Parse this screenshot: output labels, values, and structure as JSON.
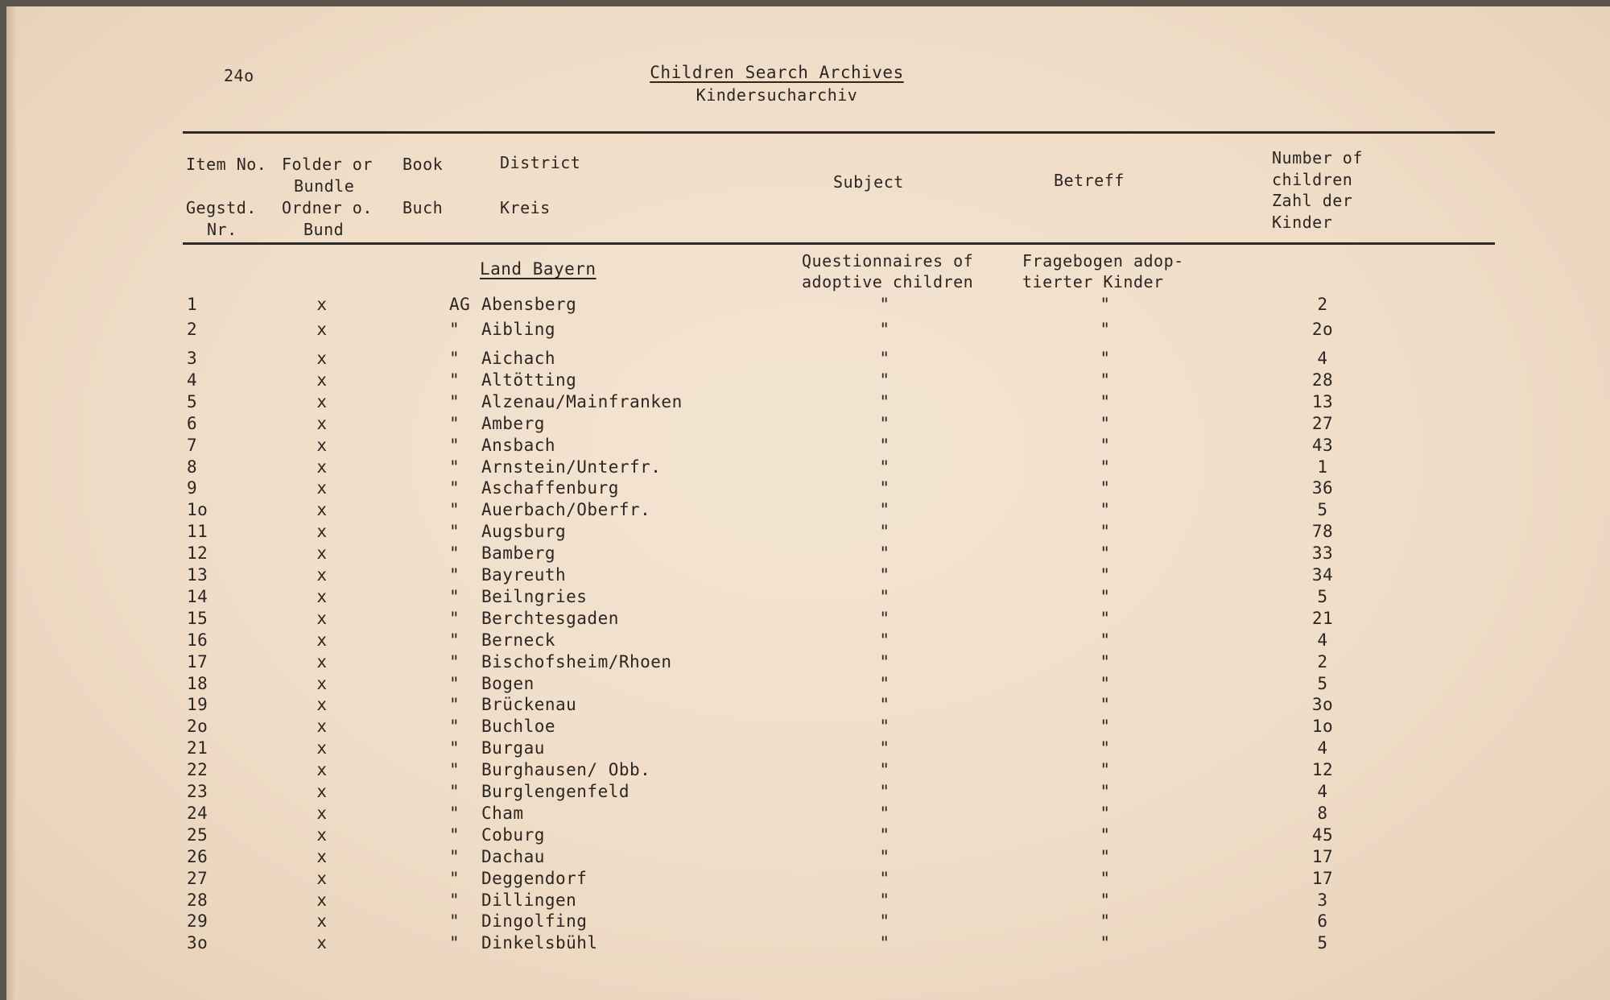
{
  "page_number": "24o",
  "title": "Children Search Archives",
  "subtitle": "Kindersucharchiv",
  "headers": {
    "item_en": "Item No.",
    "item_de1": "Gegstd.",
    "item_de2": "Nr.",
    "folder_en1": "Folder or",
    "folder_en2": "Bundle",
    "folder_de1": "Ordner o.",
    "folder_de2": "Bund",
    "book_en": "Book",
    "book_de": "Buch",
    "district_en": "District",
    "district_de": "Kreis",
    "subject": "Subject",
    "betreff": "Betreff",
    "number1": "Number of",
    "number2": "children",
    "number3": "Zahl der",
    "number4": "Kinder"
  },
  "section": "Land Bayern",
  "subject_text1": "Questionnaires of",
  "subject_text2": "adoptive children",
  "betreff_text1": "Fragebogen adop-",
  "betreff_text2": "tierter Kinder",
  "rows": [
    {
      "item": "1",
      "folder": "x",
      "book": "AG",
      "district": "Abensberg",
      "subject": "\"",
      "betreff": "\"",
      "count": "2"
    },
    {
      "item": "2",
      "folder": "x",
      "book": "\"",
      "district": "Aibling",
      "subject": "\"",
      "betreff": "\"",
      "count": "2o"
    },
    {
      "item": "3",
      "folder": "x",
      "book": "\"",
      "district": "Aichach",
      "subject": "\"",
      "betreff": "\"",
      "count": "4"
    },
    {
      "item": "4",
      "folder": "x",
      "book": "\"",
      "district": "Altötting",
      "subject": "\"",
      "betreff": "\"",
      "count": "28"
    },
    {
      "item": "5",
      "folder": "x",
      "book": "\"",
      "district": "Alzenau/Mainfranken",
      "subject": "\"",
      "betreff": "\"",
      "count": "13"
    },
    {
      "item": "6",
      "folder": "x",
      "book": "\"",
      "district": "Amberg",
      "subject": "\"",
      "betreff": "\"",
      "count": "27"
    },
    {
      "item": "7",
      "folder": "x",
      "book": "\"",
      "district": "Ansbach",
      "subject": "\"",
      "betreff": "\"",
      "count": "43"
    },
    {
      "item": "8",
      "folder": "x",
      "book": "\"",
      "district": "Arnstein/Unterfr.",
      "subject": "\"",
      "betreff": "\"",
      "count": "1"
    },
    {
      "item": "9",
      "folder": "x",
      "book": "\"",
      "district": "Aschaffenburg",
      "subject": "\"",
      "betreff": "\"",
      "count": "36"
    },
    {
      "item": "1o",
      "folder": "x",
      "book": "\"",
      "district": "Auerbach/Oberfr.",
      "subject": "\"",
      "betreff": "\"",
      "count": "5"
    },
    {
      "item": "11",
      "folder": "x",
      "book": "\"",
      "district": "Augsburg",
      "subject": "\"",
      "betreff": "\"",
      "count": "78"
    },
    {
      "item": "12",
      "folder": "x",
      "book": "\"",
      "district": "Bamberg",
      "subject": "\"",
      "betreff": "\"",
      "count": "33"
    },
    {
      "item": "13",
      "folder": "x",
      "book": "\"",
      "district": "Bayreuth",
      "subject": "\"",
      "betreff": "\"",
      "count": "34"
    },
    {
      "item": "14",
      "folder": "x",
      "book": "\"",
      "district": "Beilngries",
      "subject": "\"",
      "betreff": "\"",
      "count": "5"
    },
    {
      "item": "15",
      "folder": "x",
      "book": "\"",
      "district": "Berchtesgaden",
      "subject": "\"",
      "betreff": "\"",
      "count": "21"
    },
    {
      "item": "16",
      "folder": "x",
      "book": "\"",
      "district": "Berneck",
      "subject": "\"",
      "betreff": "\"",
      "count": "4"
    },
    {
      "item": "17",
      "folder": "x",
      "book": "\"",
      "district": "Bischofsheim/Rhoen",
      "subject": "\"",
      "betreff": "\"",
      "count": "2"
    },
    {
      "item": "18",
      "folder": "x",
      "book": "\"",
      "district": "Bogen",
      "subject": "\"",
      "betreff": "\"",
      "count": "5"
    },
    {
      "item": "19",
      "folder": "x",
      "book": "\"",
      "district": "Brückenau",
      "subject": "\"",
      "betreff": "\"",
      "count": "3o"
    },
    {
      "item": "2o",
      "folder": "x",
      "book": "\"",
      "district": "Buchloe",
      "subject": "\"",
      "betreff": "\"",
      "count": "1o"
    },
    {
      "item": "21",
      "folder": "x",
      "book": "\"",
      "district": "Burgau",
      "subject": "\"",
      "betreff": "\"",
      "count": "4"
    },
    {
      "item": "22",
      "folder": "x",
      "book": "\"",
      "district": "Burghausen/ Obb.",
      "subject": "\"",
      "betreff": "\"",
      "count": "12"
    },
    {
      "item": "23",
      "folder": "x",
      "book": "\"",
      "district": "Burglengenfeld",
      "subject": "\"",
      "betreff": "\"",
      "count": "4"
    },
    {
      "item": "24",
      "folder": "x",
      "book": "\"",
      "district": "Cham",
      "subject": "\"",
      "betreff": "\"",
      "count": "8"
    },
    {
      "item": "25",
      "folder": "x",
      "book": "\"",
      "district": "Coburg",
      "subject": "\"",
      "betreff": "\"",
      "count": "45"
    },
    {
      "item": "26",
      "folder": "x",
      "book": "\"",
      "district": "Dachau",
      "subject": "\"",
      "betreff": "\"",
      "count": "17"
    },
    {
      "item": "27",
      "folder": "x",
      "book": "\"",
      "district": "Deggendorf",
      "subject": "\"",
      "betreff": "\"",
      "count": "17"
    },
    {
      "item": "28",
      "folder": "x",
      "book": "\"",
      "district": "Dillingen",
      "subject": "\"",
      "betreff": "\"",
      "count": "3"
    },
    {
      "item": "29",
      "folder": "x",
      "book": "\"",
      "district": "Dingolfing",
      "subject": "\"",
      "betreff": "\"",
      "count": "6"
    },
    {
      "item": "3o",
      "folder": "x",
      "book": "\"",
      "district": "Dinkelsbühl",
      "subject": "\"",
      "betreff": "\"",
      "count": "5"
    }
  ]
}
